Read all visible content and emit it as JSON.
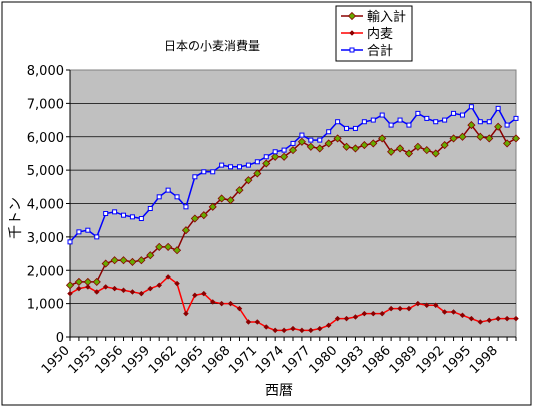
{
  "chart_data": {
    "type": "line",
    "title": "日本の小麦消費量",
    "xlabel": "西暦",
    "ylabel": "千トン",
    "ylim": [
      0,
      8000
    ],
    "yticks": [
      "0",
      "1,000",
      "2,000",
      "3,000",
      "4,000",
      "5,000",
      "6,000",
      "7,000",
      "8,000"
    ],
    "xticks": [
      "1950",
      "1953",
      "1956",
      "1959",
      "1962",
      "1965",
      "1968",
      "1971",
      "1974",
      "1977",
      "1980",
      "1983",
      "1986",
      "1989",
      "1992",
      "1995",
      "1998"
    ],
    "legend_position": "top-right",
    "grid": "horizontal",
    "x": [
      1950,
      1951,
      1952,
      1953,
      1954,
      1955,
      1956,
      1957,
      1958,
      1959,
      1960,
      1961,
      1962,
      1963,
      1964,
      1965,
      1966,
      1967,
      1968,
      1969,
      1970,
      1971,
      1972,
      1973,
      1974,
      1975,
      1976,
      1977,
      1978,
      1979,
      1980,
      1981,
      1982,
      1983,
      1984,
      1985,
      1986,
      1987,
      1988,
      1989,
      1990,
      1991,
      1992,
      1993,
      1994,
      1995,
      1996,
      1997,
      1998,
      1999,
      2000
    ],
    "series": [
      {
        "name": "輸入計",
        "color": "#8b0000",
        "marker_color": "#66aa00",
        "values": [
          1550,
          1650,
          1650,
          1650,
          2200,
          2300,
          2300,
          2250,
          2300,
          2450,
          2700,
          2700,
          2600,
          3200,
          3550,
          3650,
          3900,
          4150,
          4100,
          4400,
          4700,
          4900,
          5200,
          5400,
          5400,
          5600,
          5850,
          5700,
          5650,
          5800,
          5950,
          5700,
          5650,
          5750,
          5800,
          5950,
          5550,
          5650,
          5500,
          5700,
          5600,
          5500,
          5750,
          5950,
          6000,
          6350,
          6000,
          5950,
          6300,
          5800,
          5950
        ]
      },
      {
        "name": "内麦",
        "color": "#ff0000",
        "marker_color": "#8b0000",
        "values": [
          1300,
          1450,
          1500,
          1350,
          1500,
          1450,
          1400,
          1350,
          1300,
          1450,
          1550,
          1800,
          1600,
          700,
          1250,
          1300,
          1050,
          1000,
          1000,
          850,
          450,
          450,
          300,
          200,
          200,
          250,
          200,
          200,
          250,
          350,
          550,
          550,
          600,
          700,
          700,
          700,
          850,
          850,
          850,
          1000,
          950,
          950,
          750,
          750,
          650,
          550,
          450,
          500,
          550,
          550,
          550
        ]
      },
      {
        "name": "合計",
        "color": "#0000ff",
        "marker_color": "#0000ff",
        "values": [
          2850,
          3150,
          3200,
          3000,
          3700,
          3750,
          3650,
          3600,
          3550,
          3850,
          4200,
          4400,
          4200,
          3900,
          4800,
          4950,
          4950,
          5150,
          5100,
          5100,
          5150,
          5250,
          5400,
          5550,
          5600,
          5800,
          6050,
          5900,
          5900,
          6150,
          6450,
          6250,
          6250,
          6450,
          6500,
          6650,
          6350,
          6500,
          6350,
          6700,
          6550,
          6450,
          6500,
          6700,
          6650,
          6900,
          6450,
          6450,
          6850,
          6350,
          6550
        ]
      }
    ]
  }
}
